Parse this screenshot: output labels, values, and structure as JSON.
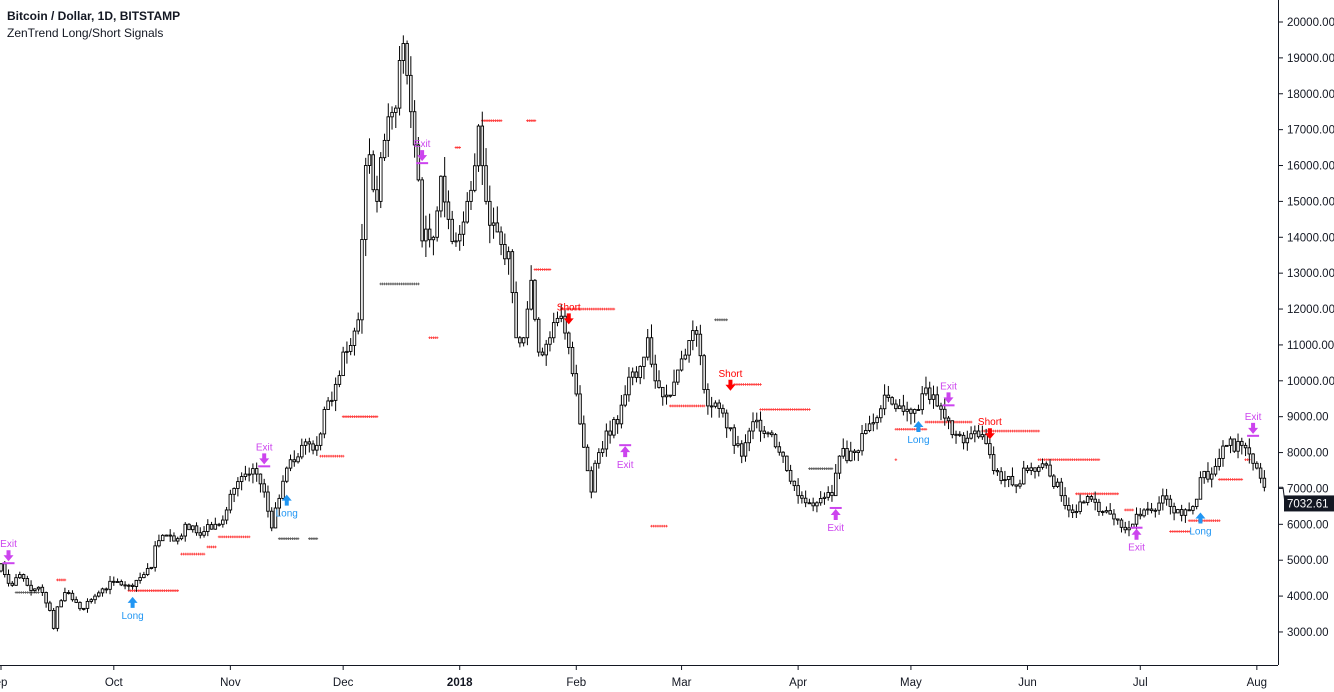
{
  "header": {
    "title": "Bitcoin / Dollar, 1D, BITSTAMP",
    "indicator": "ZenTrend Long/Short Signals"
  },
  "colors": {
    "long": "#2196f3",
    "short": "#ff0000",
    "exit": "#cc44ee",
    "stop_red": "#ff3333",
    "stop_gray": "#555555",
    "candle_up": "#ffffff",
    "candle_down": "#e0e0e0",
    "candle_border": "#000000"
  },
  "chart_data": {
    "type": "candlestick",
    "last_price": "7032.61",
    "y_ticks": [
      "3000.00",
      "4000.00",
      "5000.00",
      "6000.00",
      "7000.00",
      "8000.00",
      "9000.00",
      "10000.00",
      "11000.00",
      "12000.00",
      "13000.00",
      "14000.00",
      "15000.00",
      "16000.00",
      "17000.00",
      "18000.00",
      "19000.00",
      "20000.00"
    ],
    "ylim": [
      3000,
      20000
    ],
    "x_ticks": [
      {
        "label": "ep",
        "date": "2017-09-01",
        "bold": false
      },
      {
        "label": "Oct",
        "date": "2017-10-01",
        "bold": false
      },
      {
        "label": "Nov",
        "date": "2017-11-01",
        "bold": false
      },
      {
        "label": "Dec",
        "date": "2017-12-01",
        "bold": false
      },
      {
        "label": "2018",
        "date": "2018-01-01",
        "bold": true
      },
      {
        "label": "Feb",
        "date": "2018-02-01",
        "bold": false
      },
      {
        "label": "Mar",
        "date": "2018-03-01",
        "bold": false
      },
      {
        "label": "Apr",
        "date": "2018-04-01",
        "bold": false
      },
      {
        "label": "May",
        "date": "2018-05-01",
        "bold": false
      },
      {
        "label": "Jun",
        "date": "2018-06-01",
        "bold": false
      },
      {
        "label": "Jul",
        "date": "2018-07-01",
        "bold": false
      },
      {
        "label": "Aug",
        "date": "2018-08-01",
        "bold": false
      }
    ],
    "closes": [
      [
        "2017-08-31",
        4700
      ],
      [
        "2017-09-01",
        4900
      ],
      [
        "2017-09-02",
        4600
      ],
      [
        "2017-09-04",
        4300
      ],
      [
        "2017-09-06",
        4600
      ],
      [
        "2017-09-08",
        4300
      ],
      [
        "2017-09-10",
        4200
      ],
      [
        "2017-09-12",
        4100
      ],
      [
        "2017-09-14",
        3600
      ],
      [
        "2017-09-15",
        3100
      ],
      [
        "2017-09-16",
        3700
      ],
      [
        "2017-09-18",
        4100
      ],
      [
        "2017-09-20",
        3900
      ],
      [
        "2017-09-22",
        3650
      ],
      [
        "2017-09-25",
        3900
      ],
      [
        "2017-09-28",
        4200
      ],
      [
        "2017-10-01",
        4400
      ],
      [
        "2017-10-05",
        4300
      ],
      [
        "2017-10-09",
        4600
      ],
      [
        "2017-10-11",
        4800
      ],
      [
        "2017-10-12",
        5400
      ],
      [
        "2017-10-15",
        5700
      ],
      [
        "2017-10-18",
        5600
      ],
      [
        "2017-10-20",
        6000
      ],
      [
        "2017-10-25",
        5800
      ],
      [
        "2017-10-28",
        6000
      ],
      [
        "2017-10-31",
        6400
      ],
      [
        "2017-11-02",
        7000
      ],
      [
        "2017-11-05",
        7400
      ],
      [
        "2017-11-08",
        7400
      ],
      [
        "2017-11-10",
        6900
      ],
      [
        "2017-11-12",
        5900
      ],
      [
        "2017-11-15",
        7200
      ],
      [
        "2017-11-17",
        7800
      ],
      [
        "2017-11-20",
        8200
      ],
      [
        "2017-11-24",
        8200
      ],
      [
        "2017-11-26",
        9200
      ],
      [
        "2017-11-29",
        9900
      ],
      [
        "2017-12-01",
        10800
      ],
      [
        "2017-12-05",
        11700
      ],
      [
        "2017-12-07",
        16000
      ],
      [
        "2017-12-08",
        16300
      ],
      [
        "2017-12-10",
        15000
      ],
      [
        "2017-12-12",
        16700
      ],
      [
        "2017-12-15",
        17600
      ],
      [
        "2017-12-17",
        19400
      ],
      [
        "2017-12-19",
        17500
      ],
      [
        "2017-12-21",
        15600
      ],
      [
        "2017-12-22",
        13900
      ],
      [
        "2017-12-25",
        14000
      ],
      [
        "2017-12-27",
        15700
      ],
      [
        "2017-12-29",
        14500
      ],
      [
        "2017-12-31",
        13900
      ],
      [
        "2018-01-03",
        15000
      ],
      [
        "2018-01-06",
        17100
      ],
      [
        "2018-01-08",
        15000
      ],
      [
        "2018-01-10",
        14400
      ],
      [
        "2018-01-12",
        13800
      ],
      [
        "2018-01-14",
        13600
      ],
      [
        "2018-01-16",
        11200
      ],
      [
        "2018-01-18",
        11200
      ],
      [
        "2018-01-20",
        12800
      ],
      [
        "2018-01-22",
        10800
      ],
      [
        "2018-01-25",
        11200
      ],
      [
        "2018-01-28",
        11800
      ],
      [
        "2018-01-31",
        10200
      ],
      [
        "2018-02-02",
        8800
      ],
      [
        "2018-02-05",
        6900
      ],
      [
        "2018-02-06",
        7700
      ],
      [
        "2018-02-09",
        8600
      ],
      [
        "2018-02-12",
        8800
      ],
      [
        "2018-02-15",
        10100
      ],
      [
        "2018-02-18",
        10400
      ],
      [
        "2018-02-20",
        11200
      ],
      [
        "2018-02-22",
        10000
      ],
      [
        "2018-02-25",
        9600
      ],
      [
        "2018-02-28",
        10300
      ],
      [
        "2018-03-04",
        11400
      ],
      [
        "2018-03-06",
        10700
      ],
      [
        "2018-03-08",
        9300
      ],
      [
        "2018-03-12",
        9100
      ],
      [
        "2018-03-15",
        8200
      ],
      [
        "2018-03-17",
        7900
      ],
      [
        "2018-03-19",
        8600
      ],
      [
        "2018-03-21",
        8900
      ],
      [
        "2018-03-25",
        8500
      ],
      [
        "2018-03-28",
        7900
      ],
      [
        "2018-04-01",
        6800
      ],
      [
        "2018-04-06",
        6600
      ],
      [
        "2018-04-10",
        6800
      ],
      [
        "2018-04-12",
        7900
      ],
      [
        "2018-04-16",
        8000
      ],
      [
        "2018-04-20",
        8800
      ],
      [
        "2018-04-24",
        9600
      ],
      [
        "2018-04-28",
        9300
      ],
      [
        "2018-05-02",
        9200
      ],
      [
        "2018-05-05",
        9800
      ],
      [
        "2018-05-08",
        9300
      ],
      [
        "2018-05-12",
        8500
      ],
      [
        "2018-05-16",
        8400
      ],
      [
        "2018-05-20",
        8500
      ],
      [
        "2018-05-23",
        7500
      ],
      [
        "2018-05-28",
        7100
      ],
      [
        "2018-06-01",
        7500
      ],
      [
        "2018-06-06",
        7650
      ],
      [
        "2018-06-10",
        6800
      ],
      [
        "2018-06-12",
        6400
      ],
      [
        "2018-06-18",
        6700
      ],
      [
        "2018-06-24",
        6150
      ],
      [
        "2018-06-28",
        5900
      ],
      [
        "2018-07-02",
        6400
      ],
      [
        "2018-07-08",
        6700
      ],
      [
        "2018-07-12",
        6250
      ],
      [
        "2018-07-16",
        6700
      ],
      [
        "2018-07-17",
        7300
      ],
      [
        "2018-07-20",
        7400
      ],
      [
        "2018-07-24",
        8200
      ],
      [
        "2018-07-28",
        8200
      ],
      [
        "2018-07-31",
        7700
      ],
      [
        "2018-08-03",
        7032.61
      ]
    ],
    "signals": [
      {
        "type": "exit",
        "dir": "down",
        "label": "Exit",
        "date": "2017-09-03",
        "price": 5000
      },
      {
        "type": "long",
        "dir": "up",
        "label": "Long",
        "date": "2017-10-06",
        "price": 3950
      },
      {
        "type": "exit",
        "dir": "down",
        "label": "Exit",
        "date": "2017-11-10",
        "price": 7700
      },
      {
        "type": "long",
        "dir": "up",
        "label": "Long",
        "date": "2017-11-16",
        "price": 6800
      },
      {
        "type": "exit",
        "dir": "down",
        "label": "Exit",
        "date": "2017-12-22",
        "price": 16150
      },
      {
        "type": "short",
        "dir": "down",
        "label": "Short",
        "date": "2018-01-30",
        "price": 11600
      },
      {
        "type": "exit",
        "dir": "up",
        "label": "Exit",
        "date": "2018-02-14",
        "price": 8150
      },
      {
        "type": "short",
        "dir": "down",
        "label": "Short",
        "date": "2018-03-14",
        "price": 9750
      },
      {
        "type": "exit",
        "dir": "up",
        "label": "Exit",
        "date": "2018-04-11",
        "price": 6400
      },
      {
        "type": "long",
        "dir": "up",
        "label": "Long",
        "date": "2018-05-03",
        "price": 8850
      },
      {
        "type": "exit",
        "dir": "down",
        "label": "Exit",
        "date": "2018-05-11",
        "price": 9400
      },
      {
        "type": "short",
        "dir": "down",
        "label": "Short",
        "date": "2018-05-22",
        "price": 8400
      },
      {
        "type": "exit",
        "dir": "up",
        "label": "Exit",
        "date": "2018-06-30",
        "price": 5850
      },
      {
        "type": "long",
        "dir": "up",
        "label": "Long",
        "date": "2018-07-17",
        "price": 6300
      },
      {
        "type": "exit",
        "dir": "down",
        "label": "Exit",
        "date": "2018-07-31",
        "price": 8550
      }
    ],
    "stops": [
      {
        "from": "2017-09-05",
        "to": "2017-09-11",
        "price": 4100,
        "color": "gray"
      },
      {
        "from": "2017-09-16",
        "to": "2017-09-18",
        "price": 4450,
        "color": "red"
      },
      {
        "from": "2017-10-05",
        "to": "2017-10-18",
        "price": 4150,
        "color": "red"
      },
      {
        "from": "2017-10-19",
        "to": "2017-10-25",
        "price": 5170,
        "color": "red"
      },
      {
        "from": "2017-10-26",
        "to": "2017-10-28",
        "price": 5370,
        "color": "red"
      },
      {
        "from": "2017-10-29",
        "to": "2017-11-06",
        "price": 5650,
        "color": "red"
      },
      {
        "from": "2017-11-14",
        "to": "2017-11-19",
        "price": 5600,
        "color": "gray"
      },
      {
        "from": "2017-11-22",
        "to": "2017-11-24",
        "price": 5600,
        "color": "gray"
      },
      {
        "from": "2017-11-25",
        "to": "2017-12-01",
        "price": 7900,
        "color": "red"
      },
      {
        "from": "2017-12-01",
        "to": "2017-12-10",
        "price": 9000,
        "color": "red"
      },
      {
        "from": "2017-12-11",
        "to": "2017-12-21",
        "price": 12700,
        "color": "gray"
      },
      {
        "from": "2017-12-24",
        "to": "2017-12-26",
        "price": 11200,
        "color": "red"
      },
      {
        "from": "2017-12-31",
        "to": "2018-01-01",
        "price": 16500,
        "color": "red"
      },
      {
        "from": "2018-01-07",
        "to": "2018-01-12",
        "price": 17250,
        "color": "red"
      },
      {
        "from": "2018-01-19",
        "to": "2018-01-21",
        "price": 17250,
        "color": "red"
      },
      {
        "from": "2018-01-21",
        "to": "2018-01-25",
        "price": 13100,
        "color": "red"
      },
      {
        "from": "2018-01-28",
        "to": "2018-02-11",
        "price": 12000,
        "color": "red"
      },
      {
        "from": "2018-02-21",
        "to": "2018-02-25",
        "price": 5950,
        "color": "red"
      },
      {
        "from": "2018-02-26",
        "to": "2018-03-07",
        "price": 9300,
        "color": "red"
      },
      {
        "from": "2018-03-10",
        "to": "2018-03-13",
        "price": 11700,
        "color": "gray"
      },
      {
        "from": "2018-03-15",
        "to": "2018-03-22",
        "price": 9900,
        "color": "red"
      },
      {
        "from": "2018-03-22",
        "to": "2018-04-04",
        "price": 9200,
        "color": "red"
      },
      {
        "from": "2018-04-04",
        "to": "2018-04-10",
        "price": 7550,
        "color": "gray"
      },
      {
        "from": "2018-04-27",
        "to": "2018-04-27",
        "price": 7800,
        "color": "red"
      },
      {
        "from": "2018-04-27",
        "to": "2018-05-05",
        "price": 8650,
        "color": "red"
      },
      {
        "from": "2018-05-05",
        "to": "2018-05-17",
        "price": 8850,
        "color": "red"
      },
      {
        "from": "2018-05-20",
        "to": "2018-06-04",
        "price": 8600,
        "color": "red"
      },
      {
        "from": "2018-06-04",
        "to": "2018-06-20",
        "price": 7800,
        "color": "red"
      },
      {
        "from": "2018-06-14",
        "to": "2018-06-25",
        "price": 6850,
        "color": "red"
      },
      {
        "from": "2018-06-27",
        "to": "2018-06-29",
        "price": 6400,
        "color": "red"
      },
      {
        "from": "2018-07-09",
        "to": "2018-07-14",
        "price": 5800,
        "color": "red"
      },
      {
        "from": "2018-07-14",
        "to": "2018-07-22",
        "price": 6100,
        "color": "red"
      },
      {
        "from": "2018-07-22",
        "to": "2018-07-28",
        "price": 7250,
        "color": "red"
      },
      {
        "from": "2018-07-29",
        "to": "2018-07-30",
        "price": 7800,
        "color": "red"
      }
    ]
  }
}
